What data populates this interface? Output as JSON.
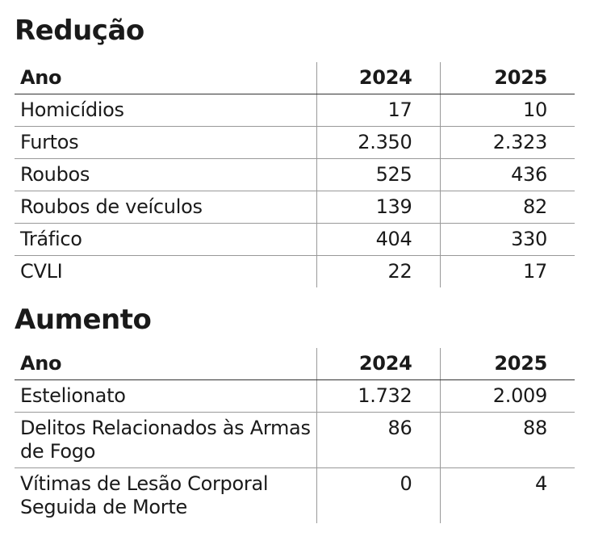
{
  "sections": [
    {
      "title": "Redução",
      "table": {
        "header": [
          "Ano",
          "2024",
          "2025"
        ],
        "rows": [
          [
            "Homicídios",
            "17",
            "10"
          ],
          [
            "Furtos",
            "2.350",
            "2.323"
          ],
          [
            "Roubos",
            "525",
            "436"
          ],
          [
            "Roubos de veículos",
            "139",
            "82"
          ],
          [
            "Tráfico",
            "404",
            "330"
          ],
          [
            "CVLI",
            "22",
            "17"
          ]
        ]
      }
    },
    {
      "title": "Aumento",
      "table": {
        "header": [
          "Ano",
          "2024",
          "2025"
        ],
        "rows": [
          [
            "Estelionato",
            "1.732",
            "2.009"
          ],
          [
            "Delitos Relacionados às Armas de Fogo",
            "86",
            "88"
          ],
          [
            "Vítimas de Lesão Corporal Seguida de Morte",
            "0",
            "4"
          ]
        ]
      }
    }
  ]
}
